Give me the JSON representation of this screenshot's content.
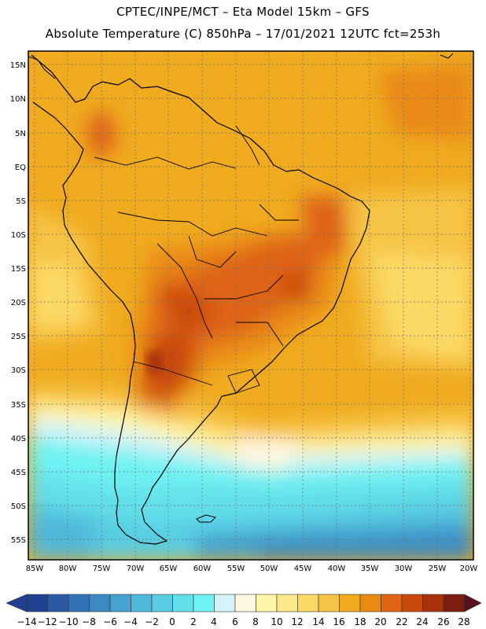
{
  "header": {
    "line1": "CPTEC/INPE/MCT –  Eta Model 15km – GFS",
    "line2": "Absolute Temperature (C) 850hPa – 17/01/2021 12UTC fct=253h"
  },
  "lat_labels": [
    "15N",
    "10N",
    "5N",
    "EQ",
    "5S",
    "10S",
    "15S",
    "20S",
    "25S",
    "30S",
    "35S",
    "40S",
    "45S",
    "50S",
    "55S"
  ],
  "lon_labels": [
    "85W",
    "80W",
    "75W",
    "70W",
    "65W",
    "60W",
    "55W",
    "50W",
    "45W",
    "40W",
    "35W",
    "30W",
    "25W",
    "20W"
  ],
  "colorbar": {
    "ticks": [
      "−14",
      "−12",
      "−10",
      "−8",
      "−6",
      "−4",
      "−2",
      "0",
      "2",
      "4",
      "6",
      "8",
      "10",
      "12",
      "14",
      "16",
      "18",
      "20",
      "22",
      "24",
      "26",
      "28"
    ],
    "colors": [
      "#1f3f8f",
      "#2b5aa3",
      "#3072b3",
      "#3a89c2",
      "#45a2cf",
      "#4fb8da",
      "#59cde3",
      "#62e0ea",
      "#6ef2f2",
      "#d4f2f7",
      "#fff7e0",
      "#fff7a8",
      "#fde98a",
      "#fbd965",
      "#f6c445",
      "#f0ab1f",
      "#e98a14",
      "#de6312",
      "#c94a0d",
      "#a8330a",
      "#7d1d10",
      "#5a0e22"
    ]
  }
}
